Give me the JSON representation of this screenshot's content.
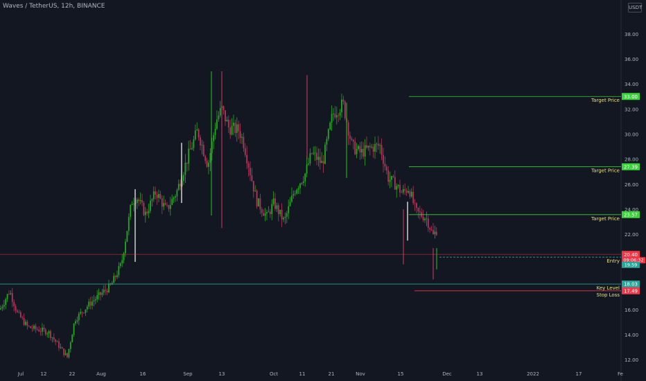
{
  "header": {
    "title": "Waves / TetherUS, 12h, BINANCE",
    "currency_button": "USDT"
  },
  "colors": {
    "background": "#131722",
    "up": "#22ab1e",
    "down": "#b5365c",
    "target": "#3ad43a",
    "stop": "#f23645",
    "entry": "#f23645",
    "key_level": "#26a69a",
    "axis_text": "#b2b5be"
  },
  "chart_data": {
    "type": "candlestick",
    "title": "Waves / TetherUS, 12h, BINANCE",
    "y_axis": {
      "ticks": [
        "12.00",
        "14.00",
        "16.00",
        "18.00",
        "20.00",
        "22.00",
        "24.00",
        "26.00",
        "28.00",
        "30.00",
        "32.00",
        "34.00",
        "36.00",
        "38.00"
      ],
      "range": [
        11.4,
        39.7
      ]
    },
    "x_axis": {
      "ticks": [
        "Jul",
        "12",
        "22",
        "Aug",
        "16",
        "Sep",
        "13",
        "Oct",
        "11",
        "21",
        "Nov",
        "15",
        "Dec",
        "13",
        "2022",
        "17",
        "Fe"
      ]
    },
    "anchors": [
      [
        "Jul",
        16.0
      ],
      [
        "5",
        17.5
      ],
      [
        "9",
        15.7
      ],
      [
        "12",
        14.6
      ],
      [
        "17",
        14.2
      ],
      [
        "22",
        12.2
      ],
      [
        "25",
        15.2
      ],
      [
        "Aug",
        16.5
      ],
      [
        "4",
        17.2
      ],
      [
        "8",
        17.9
      ],
      [
        "11",
        19.6
      ],
      [
        "14",
        24.6
      ],
      [
        "16",
        25.0
      ],
      [
        "18",
        23.6
      ],
      [
        "21",
        25.4
      ],
      [
        "24",
        23.9
      ],
      [
        "26",
        25.4
      ],
      [
        "29",
        28.0
      ],
      [
        "Sep",
        30.3
      ],
      [
        "3",
        27.5
      ],
      [
        "5",
        31.1
      ],
      [
        "8",
        32.0
      ],
      [
        "11",
        30.5
      ],
      [
        "13",
        30.3
      ],
      [
        "15",
        29.2
      ],
      [
        "18",
        24.7
      ],
      [
        "20",
        23.4
      ],
      [
        "23",
        24.5
      ],
      [
        "25",
        23.0
      ],
      [
        "28",
        25.5
      ],
      [
        "Oct",
        26.8
      ],
      [
        "4",
        28.5
      ],
      [
        "7",
        27.6
      ],
      [
        "11",
        31.6
      ],
      [
        "13",
        32.4
      ],
      [
        "16",
        29.0
      ],
      [
        "18",
        28.5
      ],
      [
        "21",
        28.9
      ],
      [
        "24",
        29.1
      ],
      [
        "27",
        26.5
      ],
      [
        "Nov",
        25.9
      ],
      [
        "5",
        25.3
      ],
      [
        "8",
        25.7
      ],
      [
        "11",
        23.8
      ],
      [
        "15",
        23.3
      ],
      [
        "16",
        21.9
      ],
      [
        "18",
        22.5
      ],
      [
        "22",
        20.6
      ],
      [
        "24",
        19.6
      ],
      [
        "26",
        20.2
      ]
    ],
    "last_price": {
      "value": "20.40",
      "countdown": "09:06:32",
      "secondary": "19.59"
    },
    "levels": [
      {
        "label": "Target Price",
        "value": 33.0,
        "tag": "33.00",
        "color": "#3ad43a"
      },
      {
        "label": "Target Price",
        "value": 27.39,
        "tag": "27.39",
        "color": "#3ad43a"
      },
      {
        "label": "Target Price",
        "value": 23.57,
        "tag": "23.57",
        "color": "#3ad43a"
      },
      {
        "label": "Entry",
        "value": 20.4,
        "tag": "20.40",
        "color": "#f23645"
      },
      {
        "label": "Key Level",
        "value": 18.03,
        "tag": "18.03",
        "color": "#26a69a"
      },
      {
        "label": "Stop Loss",
        "value": 17.49,
        "tag": "17.49",
        "color": "#f23645"
      }
    ]
  }
}
